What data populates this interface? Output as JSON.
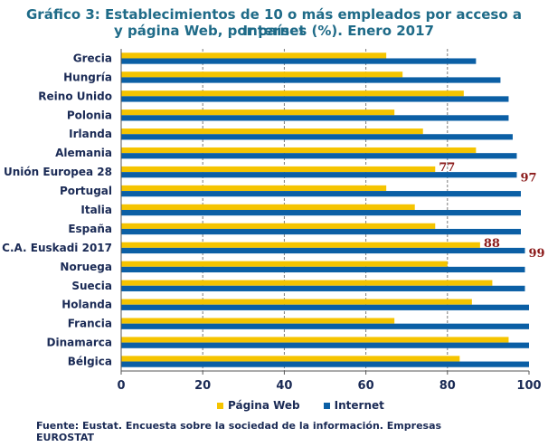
{
  "chart_data": {
    "type": "bar",
    "orientation": "horizontal",
    "title_line1": "Gráfico 3: Establecimientos de 10 o más empleados por acceso a Internet",
    "title_line2": "y página Web, por países (%). Enero 2017",
    "categories": [
      "Grecia",
      "Hungría",
      "Reino Unido",
      "Polonia",
      "Irlanda",
      "Alemania",
      "Unión Europea 28",
      "Portugal",
      "Italia",
      "España",
      "C.A. Euskadi 2017",
      "Noruega",
      "Suecia",
      "Holanda",
      "Francia",
      "Dinamarca",
      "Bélgica"
    ],
    "series": [
      {
        "name": "Página Web",
        "color": "#f5c400",
        "values": [
          65,
          69,
          84,
          67,
          74,
          87,
          77,
          65,
          72,
          77,
          88,
          80,
          91,
          86,
          67,
          95,
          83
        ]
      },
      {
        "name": "Internet",
        "color": "#0b5fa5",
        "values": [
          87,
          93,
          95,
          95,
          96,
          97,
          97,
          98,
          98,
          98,
          99,
          99,
          99,
          100,
          100,
          100,
          100
        ]
      }
    ],
    "xlim": [
      0,
      100
    ],
    "xticks": [
      0,
      20,
      40,
      60,
      80,
      100
    ],
    "grid": "vertical-dashed",
    "legend_position": "bottom",
    "annotations": [
      {
        "category": "Unión Europea 28",
        "series": "Página Web",
        "text": "77"
      },
      {
        "category": "Unión Europea 28",
        "series": "Internet",
        "text": "97"
      },
      {
        "category": "C.A. Euskadi 2017",
        "series": "Página Web",
        "text": "88"
      },
      {
        "category": "C.A. Euskadi 2017",
        "series": "Internet",
        "text": "99"
      }
    ]
  },
  "source": {
    "line1": "Fuente: Eustat. Encuesta sobre la sociedad de la información. Empresas",
    "line2": "EUROSTAT"
  }
}
